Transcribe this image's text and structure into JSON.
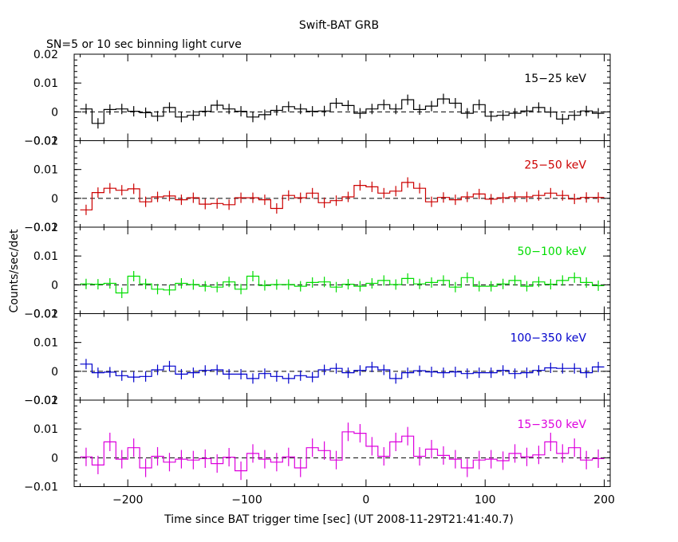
{
  "chart_data": {
    "type": "line",
    "title": "Swift-BAT GRB",
    "subtitle": "SN=5 or 10 sec binning light curve",
    "xlabel": "Time since BAT trigger time [sec] (UT 2008-11-29T21:41:40.7)",
    "ylabel": "Counts/sec/det",
    "xlim": [
      -245,
      205
    ],
    "x_ticks": [
      -200,
      -100,
      0,
      100,
      200
    ],
    "y_ticks_top": [
      "0.02",
      "0.01",
      "0",
      "−0.01"
    ],
    "y_ticks_bottom": [
      "0.02",
      "0.01",
      "0",
      "−0.01"
    ],
    "bin_width": 10,
    "bin_start": -240,
    "colors": {
      "15-25": "#000000",
      "25-50": "#cc0000",
      "50-100": "#00dd00",
      "100-350": "#0000cc",
      "15-350": "#dd00dd"
    },
    "panels": [
      {
        "name": "15−25 keV",
        "color": "#000000",
        "ylim": [
          -0.01,
          0.02
        ],
        "errors": 0.0018,
        "values": [
          0.001,
          -0.004,
          0.0008,
          0.001,
          0.0002,
          -0.0003,
          -0.0015,
          0.0015,
          -0.0018,
          -0.0012,
          0.0002,
          0.0023,
          0.001,
          0.0002,
          -0.0018,
          -0.001,
          0.0005,
          0.0018,
          0.001,
          0.0002,
          0.0003,
          0.003,
          0.0022,
          -0.0005,
          0.001,
          0.0025,
          0.001,
          0.0042,
          0.0008,
          0.002,
          0.0045,
          0.003,
          -0.0005,
          0.0025,
          -0.0015,
          -0.0012,
          -0.0005,
          0.0003,
          0.0015,
          -0.0001,
          -0.0025,
          -0.0012,
          0.0003,
          -0.0005
        ]
      },
      {
        "name": "25−50 keV",
        "color": "#cc0000",
        "ylim": [
          -0.01,
          0.02
        ],
        "errors": 0.0018,
        "values": [
          -0.004,
          0.002,
          0.0035,
          0.0028,
          0.0033,
          -0.0012,
          0.0005,
          0.0008,
          -0.0005,
          0.0002,
          -0.002,
          -0.0018,
          -0.0022,
          0.0002,
          0.0002,
          -0.0005,
          -0.0035,
          0.001,
          0.0002,
          0.0018,
          -0.0015,
          -0.0008,
          0.0005,
          0.0045,
          0.004,
          0.0018,
          0.0025,
          0.0055,
          0.0035,
          -0.0012,
          0.0003,
          -0.0005,
          0.0005,
          0.0015,
          -0.0003,
          0.0002,
          0.0005,
          0.0005,
          0.001,
          0.0018,
          0.001,
          -0.0002,
          0.0003,
          0.0003
        ]
      },
      {
        "name": "50−100 keV",
        "color": "#00dd00",
        "ylim": [
          -0.01,
          0.02
        ],
        "errors": 0.0018,
        "values": [
          0.0003,
          0.0002,
          0.0005,
          -0.0028,
          0.003,
          0.0003,
          -0.0015,
          -0.0018,
          0.0005,
          0.0001,
          -0.0005,
          -0.0008,
          0.001,
          -0.0015,
          0.003,
          -0.0002,
          0.0001,
          0.0001,
          -0.0005,
          0.0008,
          0.001,
          -0.0008,
          0.0002,
          -0.0005,
          0.0005,
          0.0015,
          0.0001,
          0.0022,
          0.0003,
          0.0008,
          0.0015,
          -0.0008,
          0.0025,
          -0.0005,
          -0.0005,
          0.0003,
          0.0015,
          -0.0005,
          0.001,
          0.0002,
          0.0015,
          0.0025,
          0.0008,
          -0.0003
        ]
      },
      {
        "name": "100−350 keV",
        "color": "#0000cc",
        "ylim": [
          -0.01,
          0.02
        ],
        "errors": 0.0018,
        "values": [
          0.0025,
          -0.0005,
          -0.0003,
          -0.0015,
          -0.002,
          -0.0018,
          0.0005,
          0.0018,
          -0.001,
          -0.0005,
          0.0003,
          0.0005,
          -0.001,
          -0.001,
          -0.0025,
          -0.0008,
          -0.0018,
          -0.0025,
          -0.0015,
          -0.002,
          0.0005,
          0.001,
          -0.0005,
          0.0003,
          0.0015,
          0.0005,
          -0.0025,
          -0.0005,
          0.0002,
          -0.0002,
          -0.0005,
          -0.0002,
          -0.0008,
          -0.0005,
          -0.0005,
          0.0003,
          -0.0008,
          -0.0005,
          0.0003,
          0.0012,
          0.001,
          0.001,
          -0.0005,
          0.0015
        ]
      },
      {
        "name": "15−350 keV",
        "color": "#dd00dd",
        "ylim": [
          -0.01,
          0.02
        ],
        "errors": 0.0032,
        "values": [
          0.0003,
          -0.0025,
          0.0055,
          -0.0005,
          0.0035,
          -0.0035,
          0.0005,
          -0.0015,
          -0.0005,
          -0.0008,
          -0.0003,
          -0.002,
          0.0002,
          -0.0045,
          0.0015,
          -0.0005,
          -0.0015,
          0.0003,
          -0.0035,
          0.0035,
          0.0025,
          -0.0008,
          0.009,
          0.0085,
          0.004,
          0.0005,
          0.0055,
          0.0075,
          0.0005,
          0.003,
          0.0008,
          -0.0005,
          -0.0035,
          -0.0008,
          -0.0005,
          -0.001,
          0.0015,
          0.0003,
          0.001,
          0.0055,
          0.0015,
          0.0035,
          -0.0008,
          -0.0003
        ]
      }
    ]
  }
}
